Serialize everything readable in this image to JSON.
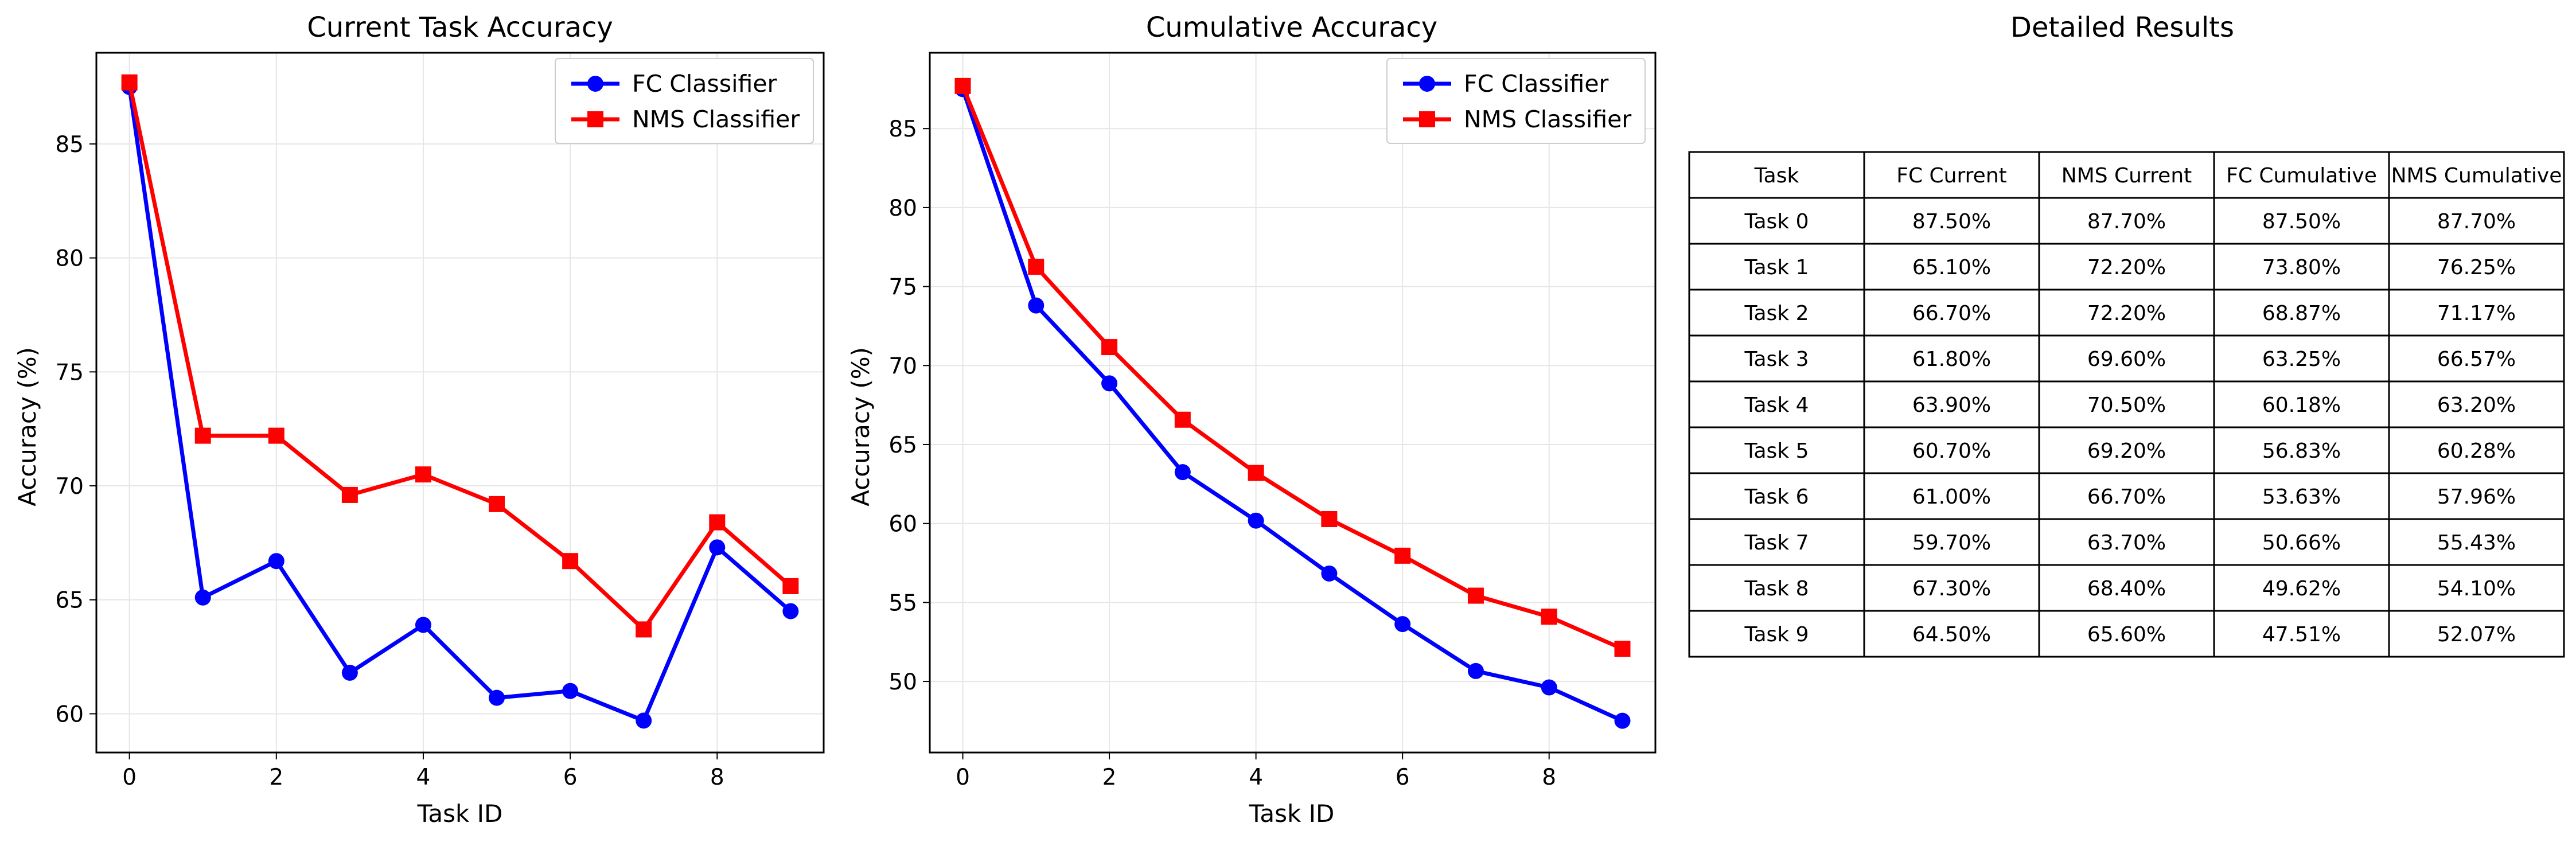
{
  "chart_data": [
    {
      "type": "line",
      "title": "Current Task Accuracy",
      "xlabel": "Task ID",
      "ylabel": "Accuracy (%)",
      "x": [
        0,
        1,
        2,
        3,
        4,
        5,
        6,
        7,
        8,
        9
      ],
      "xlim": [
        -0.45,
        9.45
      ],
      "ylim": [
        58.3,
        89.0
      ],
      "xticks": [
        0,
        2,
        4,
        6,
        8
      ],
      "yticks": [
        60,
        65,
        70,
        75,
        80,
        85
      ],
      "grid": true,
      "legend_position": "top-right",
      "series": [
        {
          "name": "FC Classifier",
          "color": "#0000ff",
          "marker": "circle",
          "values": [
            87.5,
            65.1,
            66.7,
            61.8,
            63.9,
            60.7,
            61.0,
            59.7,
            67.3,
            64.5
          ]
        },
        {
          "name": "NMS Classifier",
          "color": "#ff0000",
          "marker": "square",
          "values": [
            87.7,
            72.2,
            72.2,
            69.6,
            70.5,
            69.2,
            66.7,
            63.7,
            68.4,
            65.6
          ]
        }
      ]
    },
    {
      "type": "line",
      "title": "Cumulative Accuracy",
      "xlabel": "Task ID",
      "ylabel": "Accuracy (%)",
      "x": [
        0,
        1,
        2,
        3,
        4,
        5,
        6,
        7,
        8,
        9
      ],
      "xlim": [
        -0.45,
        9.45
      ],
      "ylim": [
        45.5,
        89.8
      ],
      "xticks": [
        0,
        2,
        4,
        6,
        8
      ],
      "yticks": [
        50,
        55,
        60,
        65,
        70,
        75,
        80,
        85
      ],
      "grid": true,
      "legend_position": "top-right",
      "series": [
        {
          "name": "FC Classifier",
          "color": "#0000ff",
          "marker": "circle",
          "values": [
            87.5,
            73.8,
            68.87,
            63.25,
            60.18,
            56.83,
            53.63,
            50.66,
            49.62,
            47.51
          ]
        },
        {
          "name": "NMS Classifier",
          "color": "#ff0000",
          "marker": "square",
          "values": [
            87.7,
            76.25,
            71.17,
            66.57,
            63.2,
            60.28,
            57.96,
            55.43,
            54.1,
            52.07
          ]
        }
      ]
    },
    {
      "type": "table",
      "title": "Detailed Results",
      "columns": [
        "Task",
        "FC Current",
        "NMS Current",
        "FC Cumulative",
        "NMS Cumulative"
      ],
      "rows": [
        [
          "Task 0",
          "87.50%",
          "87.70%",
          "87.50%",
          "87.70%"
        ],
        [
          "Task 1",
          "65.10%",
          "72.20%",
          "73.80%",
          "76.25%"
        ],
        [
          "Task 2",
          "66.70%",
          "72.20%",
          "68.87%",
          "71.17%"
        ],
        [
          "Task 3",
          "61.80%",
          "69.60%",
          "63.25%",
          "66.57%"
        ],
        [
          "Task 4",
          "63.90%",
          "70.50%",
          "60.18%",
          "63.20%"
        ],
        [
          "Task 5",
          "60.70%",
          "69.20%",
          "56.83%",
          "60.28%"
        ],
        [
          "Task 6",
          "61.00%",
          "66.70%",
          "53.63%",
          "57.96%"
        ],
        [
          "Task 7",
          "59.70%",
          "63.70%",
          "50.66%",
          "55.43%"
        ],
        [
          "Task 8",
          "67.30%",
          "68.40%",
          "49.62%",
          "54.10%"
        ],
        [
          "Task 9",
          "64.50%",
          "65.60%",
          "47.51%",
          "52.07%"
        ]
      ]
    }
  ]
}
